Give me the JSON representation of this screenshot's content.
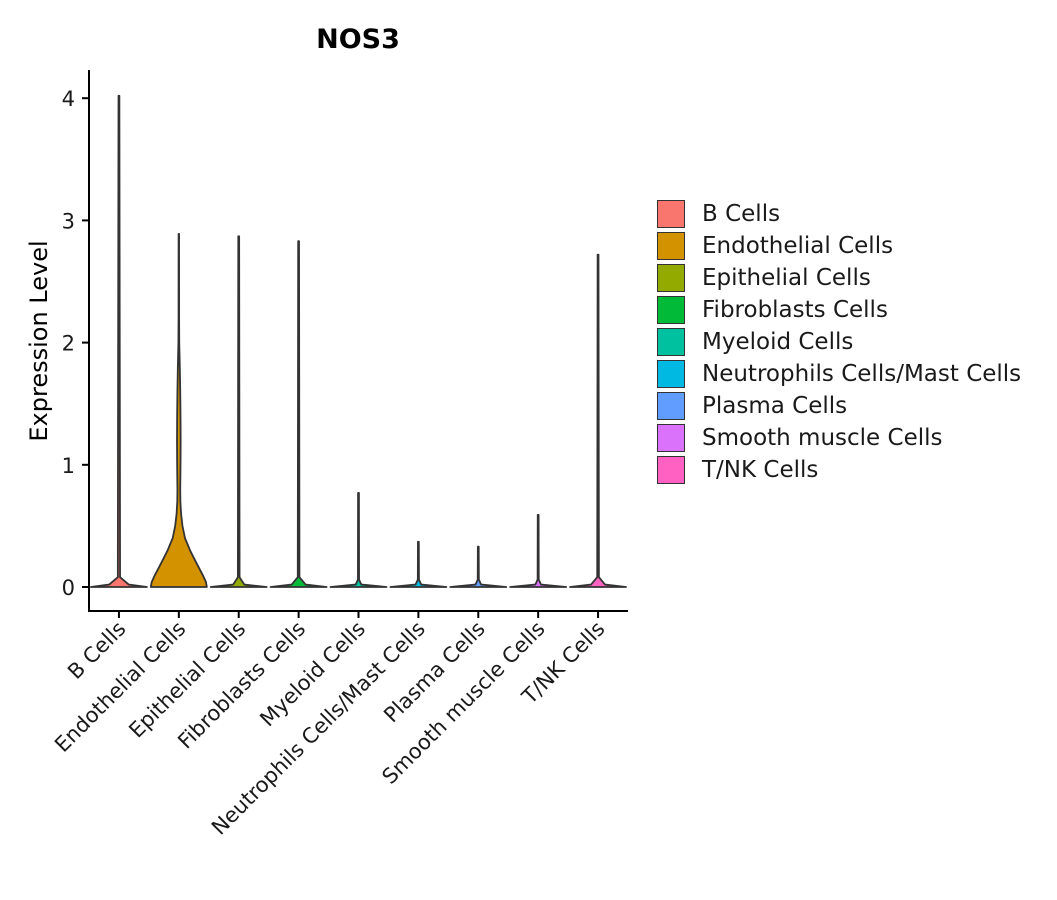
{
  "chart_data": {
    "type": "violin",
    "title": "NOS3",
    "xlabel": "",
    "ylabel": "Expression Level",
    "ylim": [
      -0.2,
      4.22
    ],
    "yticks": [
      0,
      1,
      2,
      3,
      4
    ],
    "grid": false,
    "legend_position": "right",
    "categories": [
      "B Cells",
      "Endothelial Cells",
      "Epithelial Cells",
      "Fibroblasts Cells",
      "Myeloid Cells",
      "Neutrophils Cells/Mast Cells",
      "Plasma Cells",
      "Smooth muscle Cells",
      "T/NK Cells"
    ],
    "colors": [
      "#F8766D",
      "#D39200",
      "#93AA00",
      "#00BA38",
      "#00C19F",
      "#00B9E3",
      "#619CFF",
      "#DB72FB",
      "#FF61C3"
    ],
    "series": [
      {
        "name": "B Cells",
        "max": 4.02,
        "density": [
          [
            0,
            1.0
          ],
          [
            0.02,
            0.35
          ],
          [
            0.08,
            0.04
          ],
          [
            4.02,
            0.015
          ]
        ]
      },
      {
        "name": "Endothelial Cells",
        "max": 2.89,
        "density": [
          [
            0,
            1.0
          ],
          [
            0.04,
            0.97
          ],
          [
            0.1,
            0.85
          ],
          [
            0.2,
            0.62
          ],
          [
            0.3,
            0.4
          ],
          [
            0.4,
            0.22
          ],
          [
            0.5,
            0.13
          ],
          [
            0.6,
            0.08
          ],
          [
            0.7,
            0.055
          ],
          [
            0.8,
            0.05
          ],
          [
            0.9,
            0.055
          ],
          [
            1.0,
            0.06
          ],
          [
            1.2,
            0.065
          ],
          [
            1.4,
            0.06
          ],
          [
            1.6,
            0.05
          ],
          [
            1.8,
            0.035
          ],
          [
            2.0,
            0.015
          ],
          [
            2.2,
            0.01
          ],
          [
            2.89,
            0.008
          ]
        ]
      },
      {
        "name": "Epithelial Cells",
        "max": 2.87,
        "density": [
          [
            0,
            1.0
          ],
          [
            0.02,
            0.2
          ],
          [
            0.08,
            0.03
          ],
          [
            2.87,
            0.015
          ]
        ]
      },
      {
        "name": "Fibroblasts Cells",
        "max": 2.83,
        "density": [
          [
            0,
            1.0
          ],
          [
            0.02,
            0.25
          ],
          [
            0.08,
            0.03
          ],
          [
            2.83,
            0.015
          ]
        ]
      },
      {
        "name": "Myeloid Cells",
        "max": 0.77,
        "density": [
          [
            0,
            1.0
          ],
          [
            0.02,
            0.1
          ],
          [
            0.06,
            0.02
          ],
          [
            0.77,
            0.015
          ]
        ]
      },
      {
        "name": "Neutrophils Cells/Mast Cells",
        "max": 0.37,
        "density": [
          [
            0,
            1.0
          ],
          [
            0.02,
            0.1
          ],
          [
            0.06,
            0.02
          ],
          [
            0.37,
            0.015
          ]
        ]
      },
      {
        "name": "Plasma Cells",
        "max": 0.33,
        "density": [
          [
            0,
            1.0
          ],
          [
            0.02,
            0.1
          ],
          [
            0.06,
            0.02
          ],
          [
            0.33,
            0.015
          ]
        ]
      },
      {
        "name": "Smooth muscle Cells",
        "max": 0.59,
        "density": [
          [
            0,
            1.0
          ],
          [
            0.02,
            0.1
          ],
          [
            0.06,
            0.02
          ],
          [
            0.59,
            0.015
          ]
        ]
      },
      {
        "name": "T/NK Cells",
        "max": 2.72,
        "density": [
          [
            0,
            1.0
          ],
          [
            0.02,
            0.25
          ],
          [
            0.08,
            0.03
          ],
          [
            2.72,
            0.015
          ]
        ]
      }
    ]
  }
}
